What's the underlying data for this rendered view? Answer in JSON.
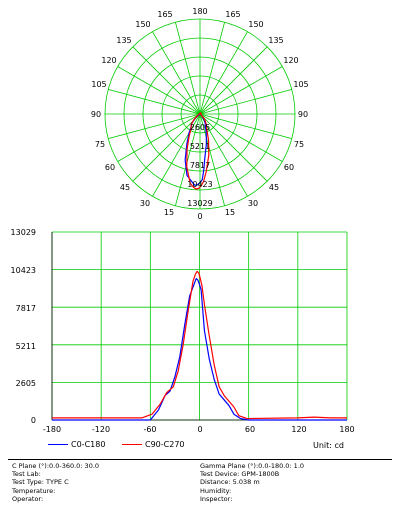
{
  "polar_chart": {
    "angle_labels": {
      "top": "180",
      "bottom": "0",
      "left": [
        "165",
        "150",
        "135",
        "120",
        "105",
        "90",
        "75",
        "60",
        "45",
        "30",
        "15"
      ],
      "right": [
        "165",
        "150",
        "135",
        "120",
        "105",
        "90",
        "75",
        "60",
        "45",
        "30",
        "15"
      ]
    },
    "radial_labels": [
      "2605",
      "5211",
      "7817",
      "10423",
      "13029"
    ]
  },
  "cartesian_chart": {
    "y_ticks": [
      "13029",
      "10423",
      "7817",
      "5211",
      "2605",
      "0"
    ],
    "x_ticks": [
      "-180",
      "-120",
      "-60",
      "0",
      "60",
      "120",
      "180"
    ],
    "unit_label": "Unit: cd"
  },
  "chart_data": {
    "type": "line",
    "xlim": [
      -180,
      180
    ],
    "ylim": [
      0,
      13029
    ],
    "xlabel": "",
    "ylabel": "",
    "grid": true,
    "legend_placement": "bottom-left",
    "series": [
      {
        "name": "C0-C180",
        "color": "#0000ff",
        "x": [
          -180,
          -60,
          -50,
          -42,
          -36,
          -30,
          -24,
          -18,
          -12,
          -6,
          -4,
          -2,
          0,
          2,
          4,
          6,
          12,
          18,
          24,
          30,
          36,
          42,
          50,
          60,
          180
        ],
        "y": [
          0,
          0,
          700,
          1700,
          2000,
          3000,
          4400,
          6600,
          8600,
          9500,
          9800,
          9700,
          9400,
          9000,
          7600,
          6200,
          4200,
          2800,
          1800,
          1400,
          1000,
          400,
          100,
          0,
          0
        ]
      },
      {
        "name": "C90-C270",
        "color": "#ff0000",
        "x": [
          -180,
          -70,
          -58,
          -48,
          -40,
          -32,
          -26,
          -20,
          -14,
          -8,
          -5,
          -3,
          -1,
          1,
          3,
          6,
          12,
          18,
          24,
          30,
          36,
          42,
          48,
          58,
          120,
          140,
          160,
          180
        ],
        "y": [
          150,
          150,
          400,
          1100,
          1900,
          2300,
          3400,
          5200,
          7500,
          9600,
          10100,
          10300,
          10200,
          9800,
          9300,
          8000,
          5800,
          3800,
          2300,
          1700,
          1300,
          900,
          300,
          100,
          150,
          200,
          150,
          150
        ]
      }
    ]
  },
  "legend": {
    "items": [
      {
        "label": "C0-C180",
        "color": "#0000ff"
      },
      {
        "label": "C90-C270",
        "color": "#ff0000"
      }
    ]
  },
  "info": {
    "c_plane": "C Plane (°):0.0-360.0: 30.0",
    "test_lab": "Test Lab:",
    "test_type": "Test Type: TYPE C",
    "temperature": "Temperature:",
    "operator": "Operator:",
    "gamma_plane": "Gamma Plane (°):0.0-180.0: 1.0",
    "test_device": "Test Device: GPM-1800B",
    "distance": "Distance: 5.038 m",
    "humidity": "Humidity:",
    "inspector": "Inspector:"
  }
}
